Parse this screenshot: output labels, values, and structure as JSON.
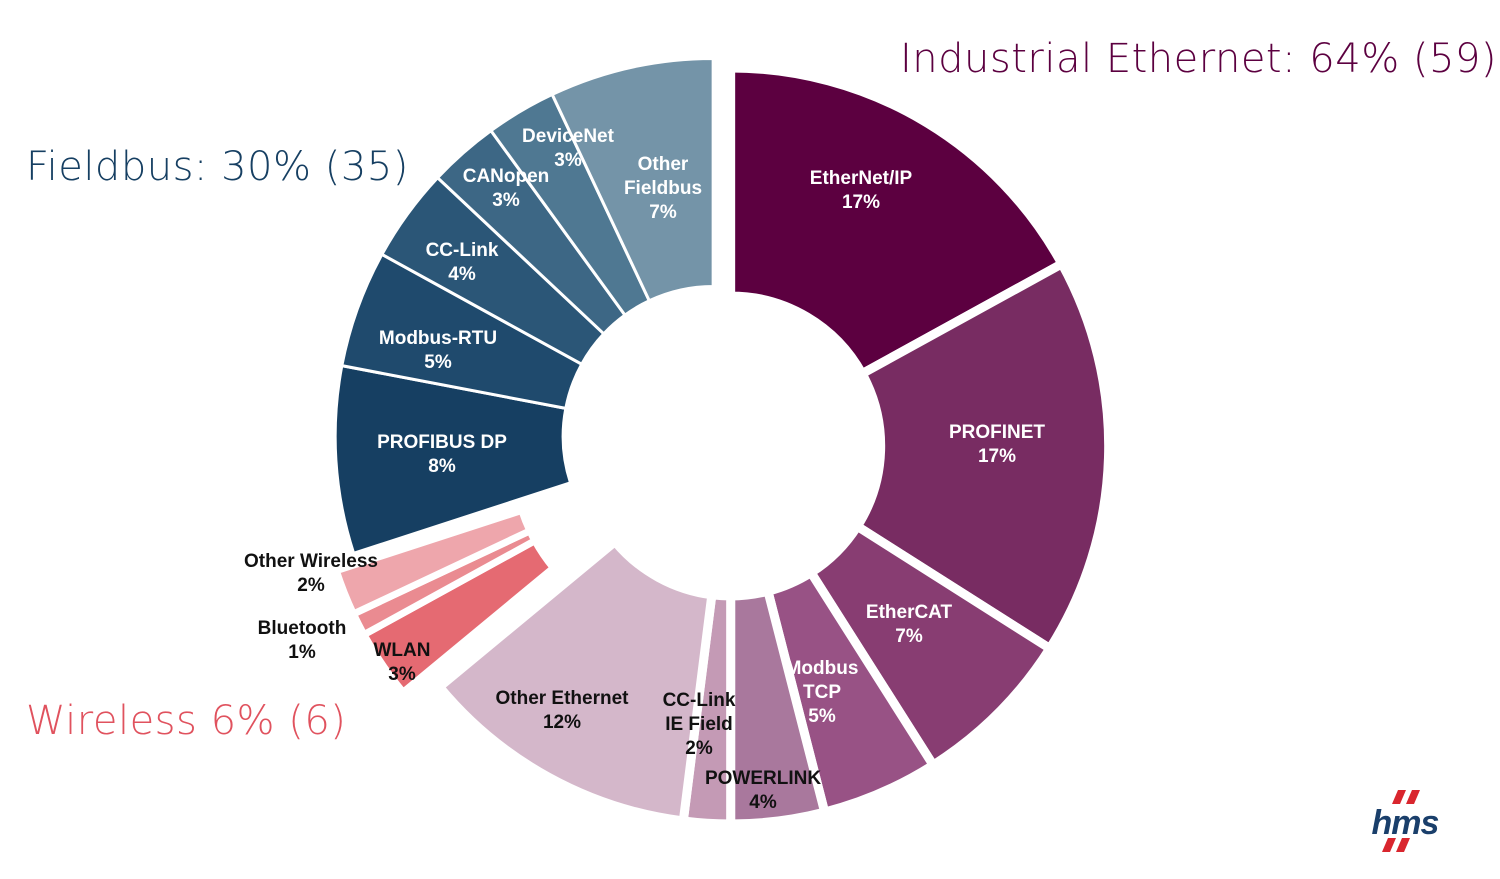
{
  "chart_data": {
    "type": "pie",
    "donut": true,
    "unit": "%",
    "groups": [
      {
        "name": "Industrial Ethernet",
        "title": "Industrial Ethernet: 64% (59)",
        "color": "#5c0040"
      },
      {
        "name": "Fieldbus",
        "title": "Fieldbus: 30% (35)",
        "color": "#163f62"
      },
      {
        "name": "Wireless",
        "title": "Wireless 6% (6)",
        "color": "#e0525e"
      }
    ],
    "slices": [
      {
        "label": "EtherNet/IP",
        "value": 17,
        "value_label": "17%",
        "group": "Industrial Ethernet",
        "color": "#5c0040"
      },
      {
        "label": "PROFINET",
        "value": 17,
        "value_label": "17%",
        "group": "Industrial Ethernet",
        "color": "#782c62"
      },
      {
        "label": "EtherCAT",
        "value": 7,
        "value_label": "7%",
        "group": "Industrial Ethernet",
        "color": "#883d72"
      },
      {
        "label": "Modbus TCP",
        "value": 5,
        "value_label": "5%",
        "group": "Industrial Ethernet",
        "color": "#985285"
      },
      {
        "label": "POWERLINK",
        "value": 4,
        "value_label": "4%",
        "group": "Industrial Ethernet",
        "color": "#a9789d"
      },
      {
        "label": "CC-Link IE Field",
        "value": 2,
        "value_label": "2%",
        "group": "Industrial Ethernet",
        "color": "#c49ab5"
      },
      {
        "label": "Other Ethernet",
        "value": 12,
        "value_label": "12%",
        "group": "Industrial Ethernet",
        "color": "#d4b7ca"
      },
      {
        "label": "WLAN",
        "value": 3,
        "value_label": "3%",
        "group": "Wireless",
        "color": "#e56a72"
      },
      {
        "label": "Bluetooth",
        "value": 1,
        "value_label": "1%",
        "group": "Wireless",
        "color": "#ea8b91"
      },
      {
        "label": "Other Wireless",
        "value": 2,
        "value_label": "2%",
        "group": "Wireless",
        "color": "#eea6ac"
      },
      {
        "label": "PROFIBUS DP",
        "value": 8,
        "value_label": "8%",
        "group": "Fieldbus",
        "color": "#163f62"
      },
      {
        "label": "Modbus-RTU",
        "value": 5,
        "value_label": "5%",
        "group": "Fieldbus",
        "color": "#1f4a6d"
      },
      {
        "label": "CC-Link",
        "value": 4,
        "value_label": "4%",
        "group": "Fieldbus",
        "color": "#2b5677"
      },
      {
        "label": "CANopen",
        "value": 3,
        "value_label": "3%",
        "group": "Fieldbus",
        "color": "#3d6785"
      },
      {
        "label": "DeviceNet",
        "value": 3,
        "value_label": "3%",
        "group": "Fieldbus",
        "color": "#4f7892"
      },
      {
        "label": "Other Fieldbus",
        "value": 7,
        "value_label": "7%",
        "group": "Fieldbus",
        "color": "#7494a8"
      }
    ]
  },
  "logo": {
    "text": "HMS",
    "colors": [
      "#1a3f6b",
      "#d9262e"
    ]
  }
}
